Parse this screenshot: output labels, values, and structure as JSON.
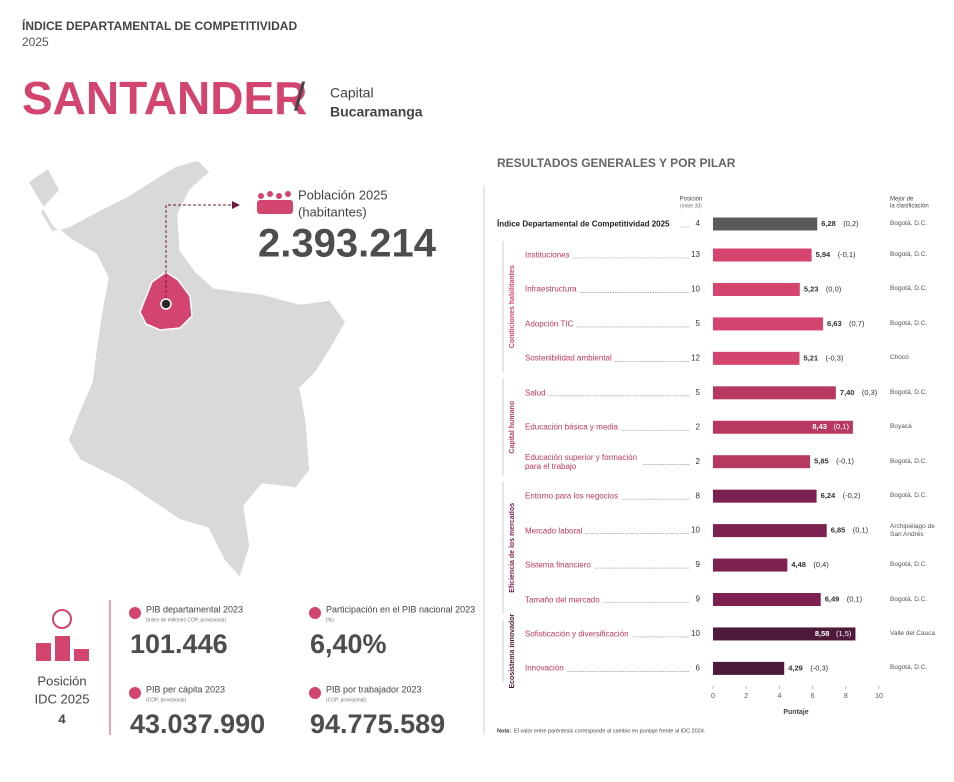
{
  "header": {
    "kicker": "ÍNDICE DEPARTAMENTAL DE COMPETITIVIDAD",
    "year": "2025",
    "department": "SANTANDER",
    "separator": "/",
    "capital_label": "Capital",
    "capital": "Bucaramanga"
  },
  "population": {
    "label": "Población 2025",
    "unit": "(habitantes)",
    "value": "2.393.214"
  },
  "ranking": {
    "label": "Posición",
    "sublabel": "IDC 2025",
    "value": "4"
  },
  "stats": [
    {
      "label": "PIB departamental 2023",
      "note": "(miles de millones COP, provisional)",
      "value": "101.446"
    },
    {
      "label": "Participación en el PIB nacional 2023",
      "note": "(%)",
      "value": "6,40%"
    },
    {
      "label": "PIB per cápita 2023",
      "note": "(COP, provisional)",
      "value": "43.037.990"
    },
    {
      "label": "PIB por trabajador 2023",
      "note": "(COP, provisional)",
      "value": "94.775.589"
    }
  ],
  "chart_data": {
    "type": "bar",
    "title": "RESULTADOS GENERALES Y POR PILAR",
    "position_header": "Posición",
    "position_subheader": "(entre 33)",
    "best_header": "Mejor de",
    "best_subheader": "la clasificación",
    "categories": [
      "Índice Departamental de Competitividad 2025",
      "Instituciones",
      "Infraestructura",
      "Adopción TIC",
      "Sostenibilidad ambiental",
      "Salud",
      "Educación básica y media",
      "Educación superior y formación para el trabajo",
      "Entorno para los negocios",
      "Mercado laboral",
      "Sistema financiero",
      "Tamaño del mercado",
      "Sofisticación y diversificación",
      "Innovación"
    ],
    "positions": [
      4,
      13,
      10,
      5,
      12,
      5,
      2,
      2,
      8,
      10,
      9,
      9,
      10,
      6
    ],
    "values": [
      6.28,
      5.94,
      5.23,
      6.63,
      5.21,
      7.4,
      8.43,
      5.85,
      6.24,
      6.85,
      4.48,
      6.49,
      8.58,
      4.29
    ],
    "value_labels": [
      "6,28",
      "5,94",
      "5,23",
      "6,63",
      "5,21",
      "7,40",
      "8,43",
      "5,85",
      "6,24",
      "6,85",
      "4,48",
      "6,49",
      "8,58",
      "4,29"
    ],
    "changes": [
      "(0,2)",
      "(-0,1)",
      "(0,0)",
      "(0,7)",
      "(-0,3)",
      "(0,3)",
      "(0,1)",
      "(-0,1)",
      "(-0,2)",
      "(0,1)",
      "(0,4)",
      "(0,1)",
      "(1,5)",
      "(-0,3)"
    ],
    "best": [
      "Bogotá, D.C.",
      "Bogotá, D.C.",
      "Bogotá, D.C.",
      "Bogotá, D.C.",
      "Chocó",
      "Bogotá, D.C.",
      "Boyacá",
      "Bogotá, D.C.",
      "Bogotá, D.C.",
      "Archipiélago de San Andrés",
      "Bogotá, D.C.",
      "Bogotá, D.C.",
      "Valle del Cauca",
      "Bogotá, D.C."
    ],
    "colors": [
      "#58595b",
      "#d3446f",
      "#d3446f",
      "#d3446f",
      "#d3446f",
      "#b8395f",
      "#b8395f",
      "#b8395f",
      "#7c2150",
      "#7c2150",
      "#7c2150",
      "#7c2150",
      "#4d1a39",
      "#4d1a39"
    ],
    "groups": [
      "Condiciones habilitantes",
      "Capital humano",
      "Eficiencia de los mercados",
      "Ecosistema innovador"
    ],
    "xlim": [
      0,
      10
    ],
    "xticks": [
      0,
      2,
      4,
      6,
      8,
      10
    ],
    "xlabel": "Puntaje",
    "note_lead": "Nota:",
    "note": "El valor entre paréntesis corresponde al cambio en puntaje frente al IDC 2024."
  }
}
